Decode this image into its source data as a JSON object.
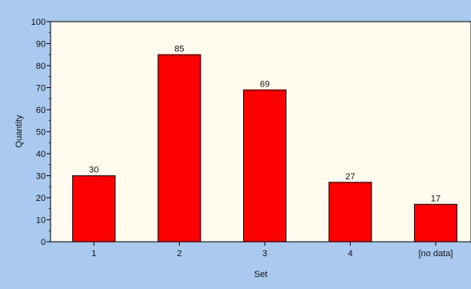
{
  "chart_data": {
    "type": "bar",
    "title": "",
    "xlabel": "Set",
    "ylabel": "Quantity",
    "categories": [
      "1",
      "2",
      "3",
      "4",
      "[no data]"
    ],
    "values": [
      30,
      85,
      69,
      27,
      17
    ],
    "data_labels": [
      "30",
      "85",
      "69",
      "27",
      "17"
    ],
    "ylim": [
      0,
      100
    ],
    "yticks": [
      0,
      10,
      20,
      30,
      40,
      50,
      60,
      70,
      80,
      90,
      100
    ],
    "ytick_labels": [
      "0",
      "10",
      "20",
      "30",
      "40",
      "50",
      "60",
      "70",
      "80",
      "90",
      "100"
    ],
    "grid": false,
    "legend": "none",
    "colors": {
      "background": "#a9c9ee",
      "plot_area": "#fffbee",
      "bar_fill": "#ff0000",
      "bar_stroke": "#000000"
    }
  }
}
